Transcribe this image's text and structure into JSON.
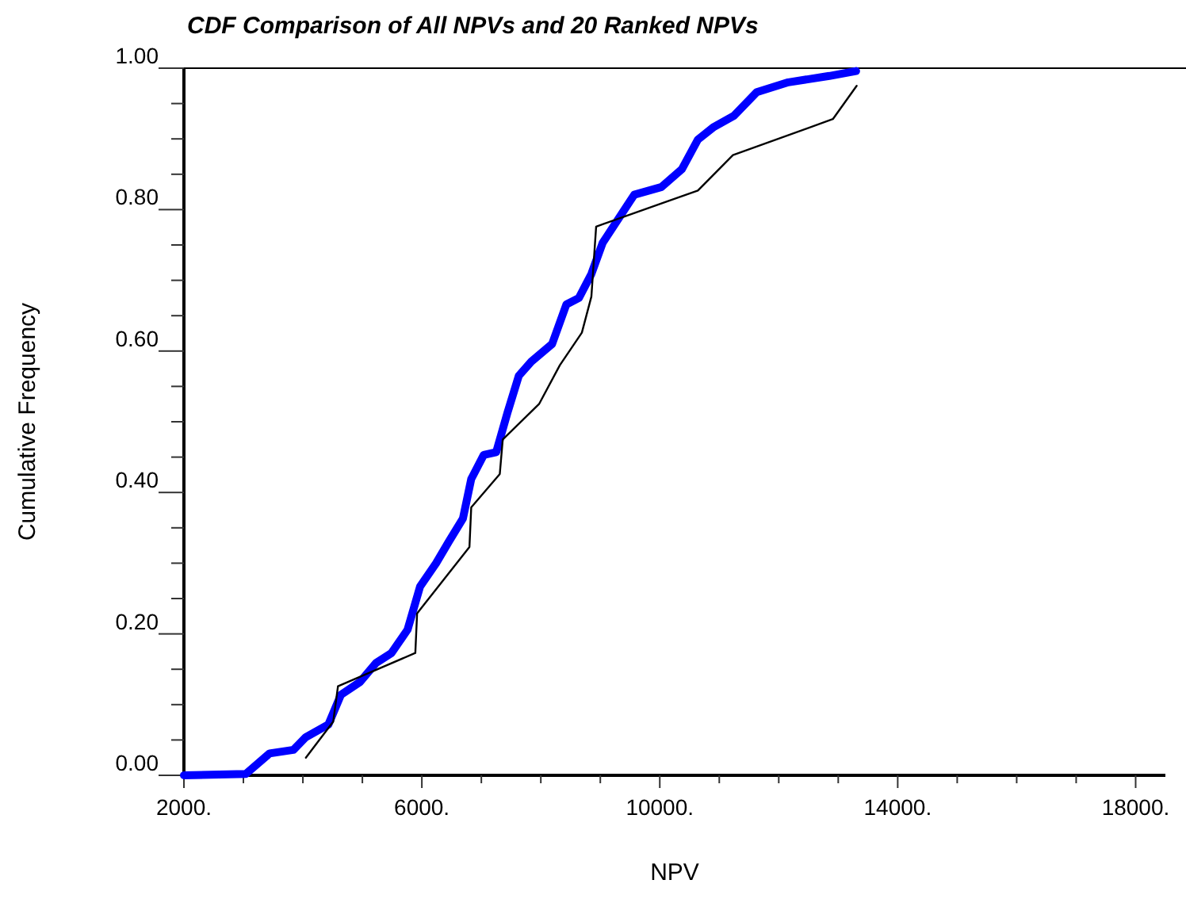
{
  "chart_data": {
    "type": "line",
    "title": "CDF Comparison of All NPVs and 20 Ranked NPVs",
    "xlabel": "NPV",
    "ylabel": "Cumulative Frequency",
    "xlim": [
      2000,
      18500
    ],
    "ylim": [
      0,
      1
    ],
    "xticks": [
      {
        "value": 2000,
        "label": "2000."
      },
      {
        "value": 3000,
        "label": null
      },
      {
        "value": 4000,
        "label": null
      },
      {
        "value": 5000,
        "label": null
      },
      {
        "value": 6000,
        "label": "6000."
      },
      {
        "value": 7000,
        "label": null
      },
      {
        "value": 8000,
        "label": null
      },
      {
        "value": 9000,
        "label": null
      },
      {
        "value": 10000,
        "label": "10000."
      },
      {
        "value": 11000,
        "label": null
      },
      {
        "value": 12000,
        "label": null
      },
      {
        "value": 13000,
        "label": null
      },
      {
        "value": 14000,
        "label": "14000."
      },
      {
        "value": 15000,
        "label": null
      },
      {
        "value": 16000,
        "label": null
      },
      {
        "value": 17000,
        "label": null
      },
      {
        "value": 18000,
        "label": "18000."
      }
    ],
    "yticks": [
      {
        "value": 0,
        "label": "0.00"
      },
      {
        "value": 0.05,
        "label": null
      },
      {
        "value": 0.1,
        "label": null
      },
      {
        "value": 0.15,
        "label": null
      },
      {
        "value": 0.2,
        "label": "0.20"
      },
      {
        "value": 0.25,
        "label": null
      },
      {
        "value": 0.3,
        "label": null
      },
      {
        "value": 0.35,
        "label": null
      },
      {
        "value": 0.4,
        "label": "0.40"
      },
      {
        "value": 0.45,
        "label": null
      },
      {
        "value": 0.5,
        "label": null
      },
      {
        "value": 0.55,
        "label": null
      },
      {
        "value": 0.6,
        "label": "0.60"
      },
      {
        "value": 0.65,
        "label": null
      },
      {
        "value": 0.7,
        "label": null
      },
      {
        "value": 0.75,
        "label": null
      },
      {
        "value": 0.8,
        "label": "0.80"
      },
      {
        "value": 0.85,
        "label": null
      },
      {
        "value": 0.9,
        "label": null
      },
      {
        "value": 0.95,
        "label": null
      },
      {
        "value": 1,
        "label": "1.00"
      }
    ],
    "grid": false,
    "ref_lines": [
      {
        "axis": "y",
        "value": 1,
        "color": "#000000"
      }
    ],
    "series": [
      {
        "color": "#0000ff",
        "x": [
          2000,
          3040,
          3440,
          3840,
          4050,
          4430,
          4640,
          4960,
          5230,
          5490,
          5760,
          5970,
          6240,
          6450,
          6690,
          6830,
          7040,
          7250,
          7440,
          7630,
          7840,
          8190,
          8430,
          8640,
          8850,
          9040,
          9570,
          10030,
          10370,
          10640,
          10910,
          11250,
          11630,
          12160,
          12850,
          13300
        ],
        "values": [
          0,
          0.002,
          0.031,
          0.036,
          0.054,
          0.072,
          0.114,
          0.132,
          0.159,
          0.173,
          0.206,
          0.267,
          0.3,
          0.33,
          0.363,
          0.419,
          0.453,
          0.457,
          0.513,
          0.565,
          0.585,
          0.61,
          0.666,
          0.675,
          0.709,
          0.753,
          0.821,
          0.832,
          0.857,
          0.899,
          0.917,
          0.933,
          0.966,
          0.98,
          0.989,
          0.996
        ]
      },
      {
        "color": "#000000",
        "x": [
          4050,
          4510,
          4590,
          5890,
          5920,
          6800,
          6830,
          7310,
          7360,
          7970,
          8320,
          8690,
          8850,
          8930,
          10640,
          11230,
          12910,
          13310
        ],
        "values": [
          0.025,
          0.076,
          0.126,
          0.173,
          0.229,
          0.323,
          0.379,
          0.426,
          0.475,
          0.525,
          0.58,
          0.626,
          0.677,
          0.776,
          0.827,
          0.877,
          0.928,
          0.975
        ]
      }
    ]
  }
}
